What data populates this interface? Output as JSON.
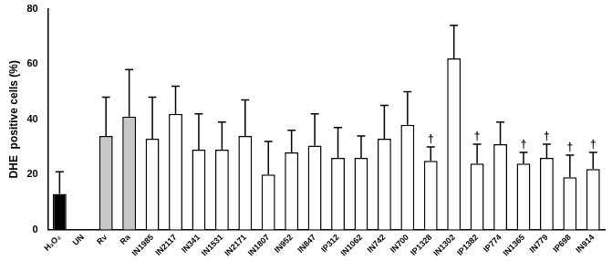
{
  "chart_data": {
    "type": "bar",
    "y_label": "DHE  positive cells (%)",
    "categories": [
      "H₂O₂",
      "UN",
      "Rv",
      "Ra",
      "IN1985",
      "IN2117",
      "IN341",
      "IN1531",
      "IN2171",
      "IN1807",
      "IN952",
      "IN847",
      "IP312",
      "IN1062",
      "IN742",
      "IN700",
      "IP1328",
      "IN1302",
      "IP1382",
      "IP774",
      "IN1365",
      "IN779",
      "IP698",
      "IN914"
    ],
    "values": [
      13,
      0.3,
      34,
      41,
      33,
      42,
      29,
      29,
      34,
      20,
      28,
      30.5,
      26,
      26,
      33,
      38,
      25,
      62,
      24,
      31,
      24,
      26,
      19,
      22
    ],
    "errors": [
      8,
      0,
      14,
      17,
      15,
      10,
      13,
      10,
      13,
      12,
      8,
      11.5,
      11,
      8,
      12,
      12,
      5,
      12,
      7,
      8,
      4,
      5,
      8,
      6
    ],
    "colors": [
      "#000000",
      "#000000",
      "#c8c8c8",
      "#c8c8c8",
      "#ffffff",
      "#ffffff",
      "#ffffff",
      "#ffffff",
      "#ffffff",
      "#ffffff",
      "#ffffff",
      "#ffffff",
      "#ffffff",
      "#ffffff",
      "#ffffff",
      "#ffffff",
      "#ffffff",
      "#ffffff",
      "#ffffff",
      "#ffffff",
      "#ffffff",
      "#ffffff",
      "#ffffff",
      "#ffffff"
    ],
    "annotations": [
      {
        "category": "IP1328",
        "text": "†"
      },
      {
        "category": "IP1382",
        "text": "†"
      },
      {
        "category": "IN1365",
        "text": "†"
      },
      {
        "category": "IN779",
        "text": "†"
      },
      {
        "category": "IP698",
        "text": "†"
      },
      {
        "category": "IN914",
        "text": "†"
      }
    ],
    "ylim": [
      0,
      80
    ],
    "yticks": [
      0,
      20,
      40,
      60,
      80
    ],
    "grid": false
  }
}
